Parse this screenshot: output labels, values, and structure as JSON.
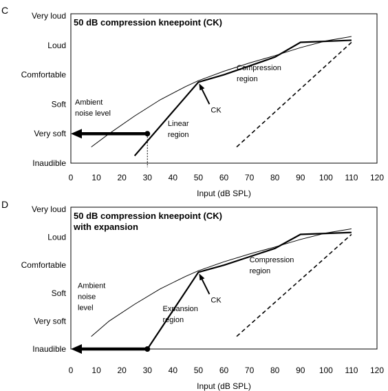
{
  "chart_data": [
    {
      "panel": "C",
      "type": "line",
      "title": "50 dB compression kneepoint (CK)",
      "title_line2": "",
      "xlabel": "Input (dB SPL)",
      "ylabel": "",
      "xlim": [
        0,
        120
      ],
      "xticks": [
        0,
        10,
        20,
        30,
        40,
        50,
        60,
        70,
        80,
        90,
        100,
        110,
        120
      ],
      "yticks": [
        "Inaudible",
        "Very soft",
        "Soft",
        "Comfortable",
        "Loud",
        "Very loud"
      ],
      "ylim": [
        0,
        5
      ],
      "grid": false,
      "annotations": {
        "ambient_line1": "Ambient",
        "ambient_line2": "noise level",
        "ambient_line3": "",
        "linear_line1": "Linear",
        "linear_line2": "region",
        "ck": "CK",
        "compression_line1": "Compression",
        "compression_line2": "region"
      },
      "series": [
        {
          "style": "thin",
          "x": [
            8,
            15,
            25,
            35,
            45,
            50,
            60,
            70,
            80,
            90,
            100,
            110
          ],
          "y": [
            0.55,
            1.0,
            1.6,
            2.15,
            2.6,
            2.8,
            3.12,
            3.4,
            3.65,
            3.92,
            4.15,
            4.3
          ]
        },
        {
          "style": "thick",
          "x": [
            25,
            50,
            60,
            70,
            80,
            90,
            110
          ],
          "y": [
            0.25,
            2.75,
            3.0,
            3.3,
            3.6,
            4.1,
            4.17
          ]
        },
        {
          "style": "dashed",
          "x": [
            65,
            110
          ],
          "y": [
            0.55,
            4.1
          ]
        }
      ],
      "ambient_arrow": {
        "from_x": 30,
        "to_x": 0,
        "y": 1
      },
      "ambient_dotted_x": 30
    },
    {
      "panel": "D",
      "type": "line",
      "title": "50 dB compression kneepoint (CK)",
      "title_line2": "with expansion",
      "xlabel": "Input (dB SPL)",
      "ylabel": "",
      "xlim": [
        0,
        120
      ],
      "xticks": [
        0,
        10,
        20,
        30,
        40,
        50,
        60,
        70,
        80,
        90,
        100,
        110,
        120
      ],
      "yticks": [
        "Inaudible",
        "Very soft",
        "Soft",
        "Comfortable",
        "Loud",
        "Very loud"
      ],
      "ylim": [
        0,
        5
      ],
      "grid": false,
      "annotations": {
        "ambient_line1": "Ambient",
        "ambient_line2": "noise",
        "ambient_line3": "level",
        "linear_line1": "Expansion",
        "linear_line2": "region",
        "ck": "CK",
        "compression_line1": "Compression",
        "compression_line2": "region"
      },
      "series": [
        {
          "style": "thin",
          "x": [
            8,
            15,
            25,
            35,
            45,
            50,
            60,
            70,
            80,
            90,
            100,
            110
          ],
          "y": [
            0.45,
            1.0,
            1.6,
            2.15,
            2.6,
            2.8,
            3.12,
            3.4,
            3.65,
            3.92,
            4.15,
            4.3
          ]
        },
        {
          "style": "thick",
          "x": [
            30,
            50,
            60,
            70,
            80,
            90,
            110
          ],
          "y": [
            0,
            2.75,
            3.0,
            3.3,
            3.6,
            4.1,
            4.17
          ]
        },
        {
          "style": "dashed",
          "x": [
            65,
            110
          ],
          "y": [
            0.45,
            4.1
          ]
        }
      ],
      "ambient_arrow": {
        "from_x": 30,
        "to_x": 0,
        "y": 0
      },
      "ambient_dotted_x": null
    }
  ]
}
